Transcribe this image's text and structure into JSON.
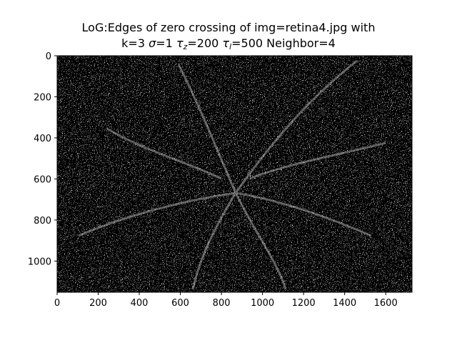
{
  "title": {
    "line1": "LoG:Edges of zero crossing of img=retina4.jpg with",
    "line2_k": "k=3",
    "line2_sigma_symbol": "σ",
    "line2_sigma_value": "=1",
    "line2_tau_symbol": "τ",
    "line2_tau_z_sub": "z",
    "line2_tau_z_value": "=200",
    "line2_tau_l_sub": "l",
    "line2_tau_l_value": "=500",
    "line2_neighbor": "Neighbor=4"
  },
  "image": {
    "description_colors": {
      "background": "#000000",
      "edge": "#ffffff"
    },
    "x_range": [
      0,
      1728
    ],
    "y_range": [
      0,
      1152
    ]
  },
  "axes": {
    "x_ticks": [
      "0",
      "200",
      "400",
      "600",
      "800",
      "1000",
      "1200",
      "1400",
      "1600"
    ],
    "x_tick_values": [
      0,
      200,
      400,
      600,
      800,
      1000,
      1200,
      1400,
      1600
    ],
    "y_ticks": [
      "0",
      "200",
      "400",
      "600",
      "800",
      "1000"
    ],
    "y_tick_values": [
      0,
      200,
      400,
      600,
      800,
      1000
    ]
  }
}
